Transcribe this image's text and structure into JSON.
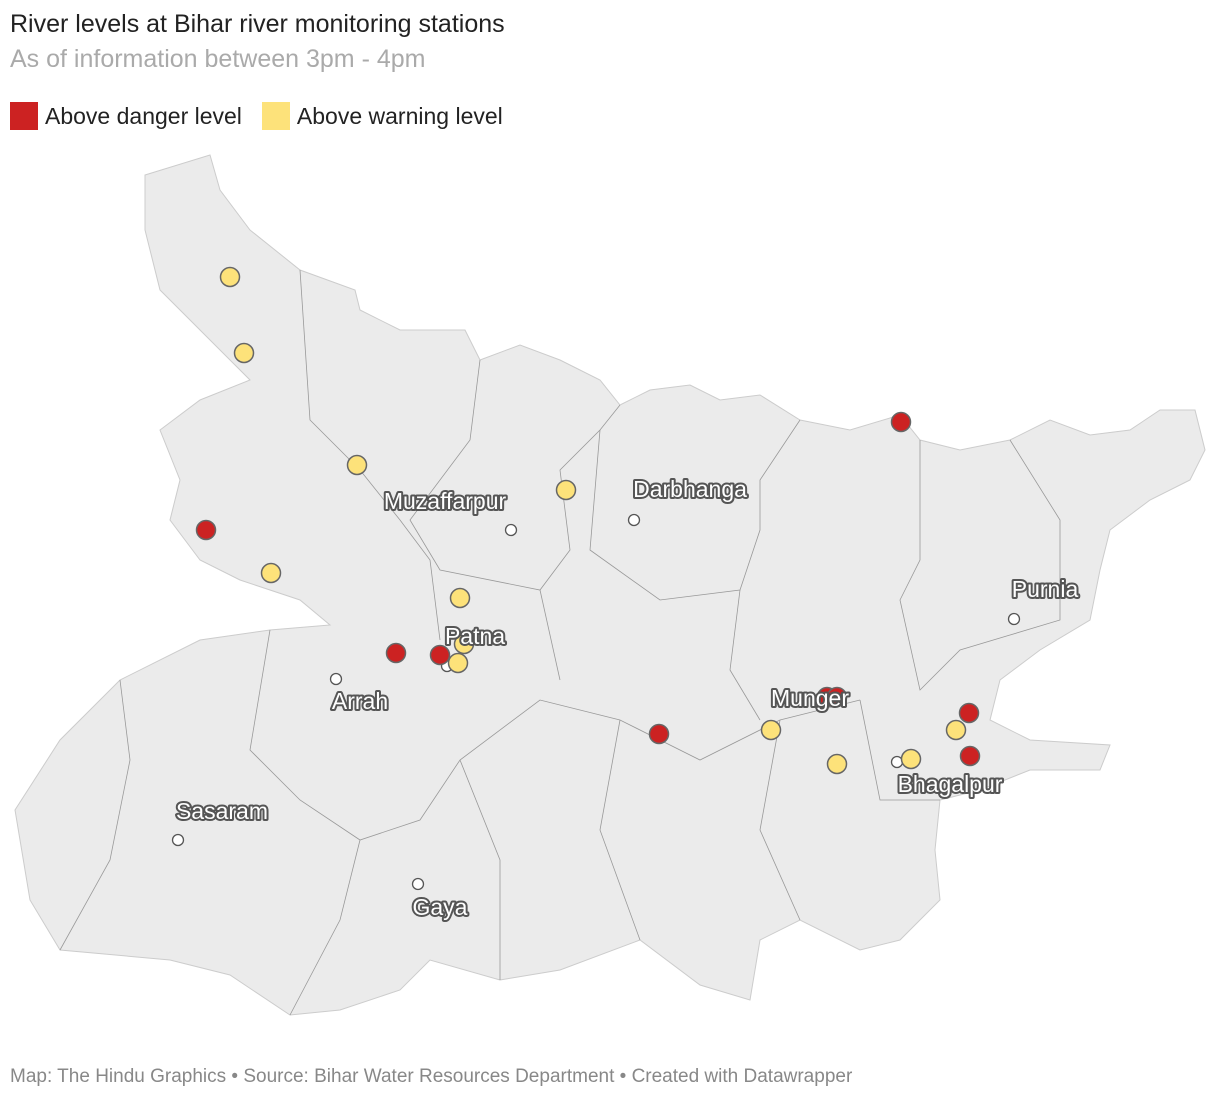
{
  "header": {
    "title": "River levels at Bihar river monitoring stations",
    "subtitle": "As of information between 3pm - 4pm"
  },
  "legend": [
    {
      "label": "Above danger level",
      "color": "#cc2222"
    },
    {
      "label": "Above warning level",
      "color": "#fde27a"
    }
  ],
  "cities": [
    "Muzaffarpur",
    "Darbhanga",
    "Purnia",
    "Patna",
    "Arrah",
    "Munger",
    "Sasaram",
    "Gaya",
    "Bhagalpur"
  ],
  "footer": "Map: The Hindu Graphics • Source: Bihar Water Resources Department • Created with Datawrapper"
}
